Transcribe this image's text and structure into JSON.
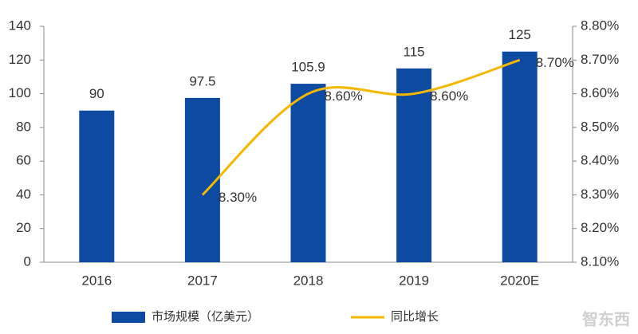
{
  "chart_data": {
    "type": "bar",
    "categories": [
      "2016",
      "2017",
      "2018",
      "2019",
      "2020E"
    ],
    "series": [
      {
        "name": "市场规模（亿美元）",
        "color": "#0d4aa1",
        "values": [
          90,
          97.5,
          105.9,
          115,
          125
        ]
      },
      {
        "name": "同比增长",
        "type": "line",
        "axis": "y2",
        "color": "#f5b800",
        "values": [
          null,
          8.3,
          8.6,
          8.6,
          8.7
        ],
        "value_labels": [
          null,
          "8.30%",
          "8.60%",
          "8.60%",
          "8.70%"
        ]
      }
    ],
    "ylim": [
      0,
      140
    ],
    "yticks": [
      0,
      20,
      40,
      60,
      80,
      100,
      120,
      140
    ],
    "y2lim": [
      8.1,
      8.8
    ],
    "y2ticks": [
      {
        "value": 8.1,
        "label": "8.10%"
      },
      {
        "value": 8.2,
        "label": "8.20%"
      },
      {
        "value": 8.3,
        "label": "8.30%"
      },
      {
        "value": 8.4,
        "label": "8.40%"
      },
      {
        "value": 8.5,
        "label": "8.50%"
      },
      {
        "value": 8.6,
        "label": "8.60%"
      },
      {
        "value": 8.7,
        "label": "8.70%"
      },
      {
        "value": 8.8,
        "label": "8.80%"
      }
    ],
    "grid": false,
    "legend": "bottom",
    "watermark": "智东西"
  }
}
